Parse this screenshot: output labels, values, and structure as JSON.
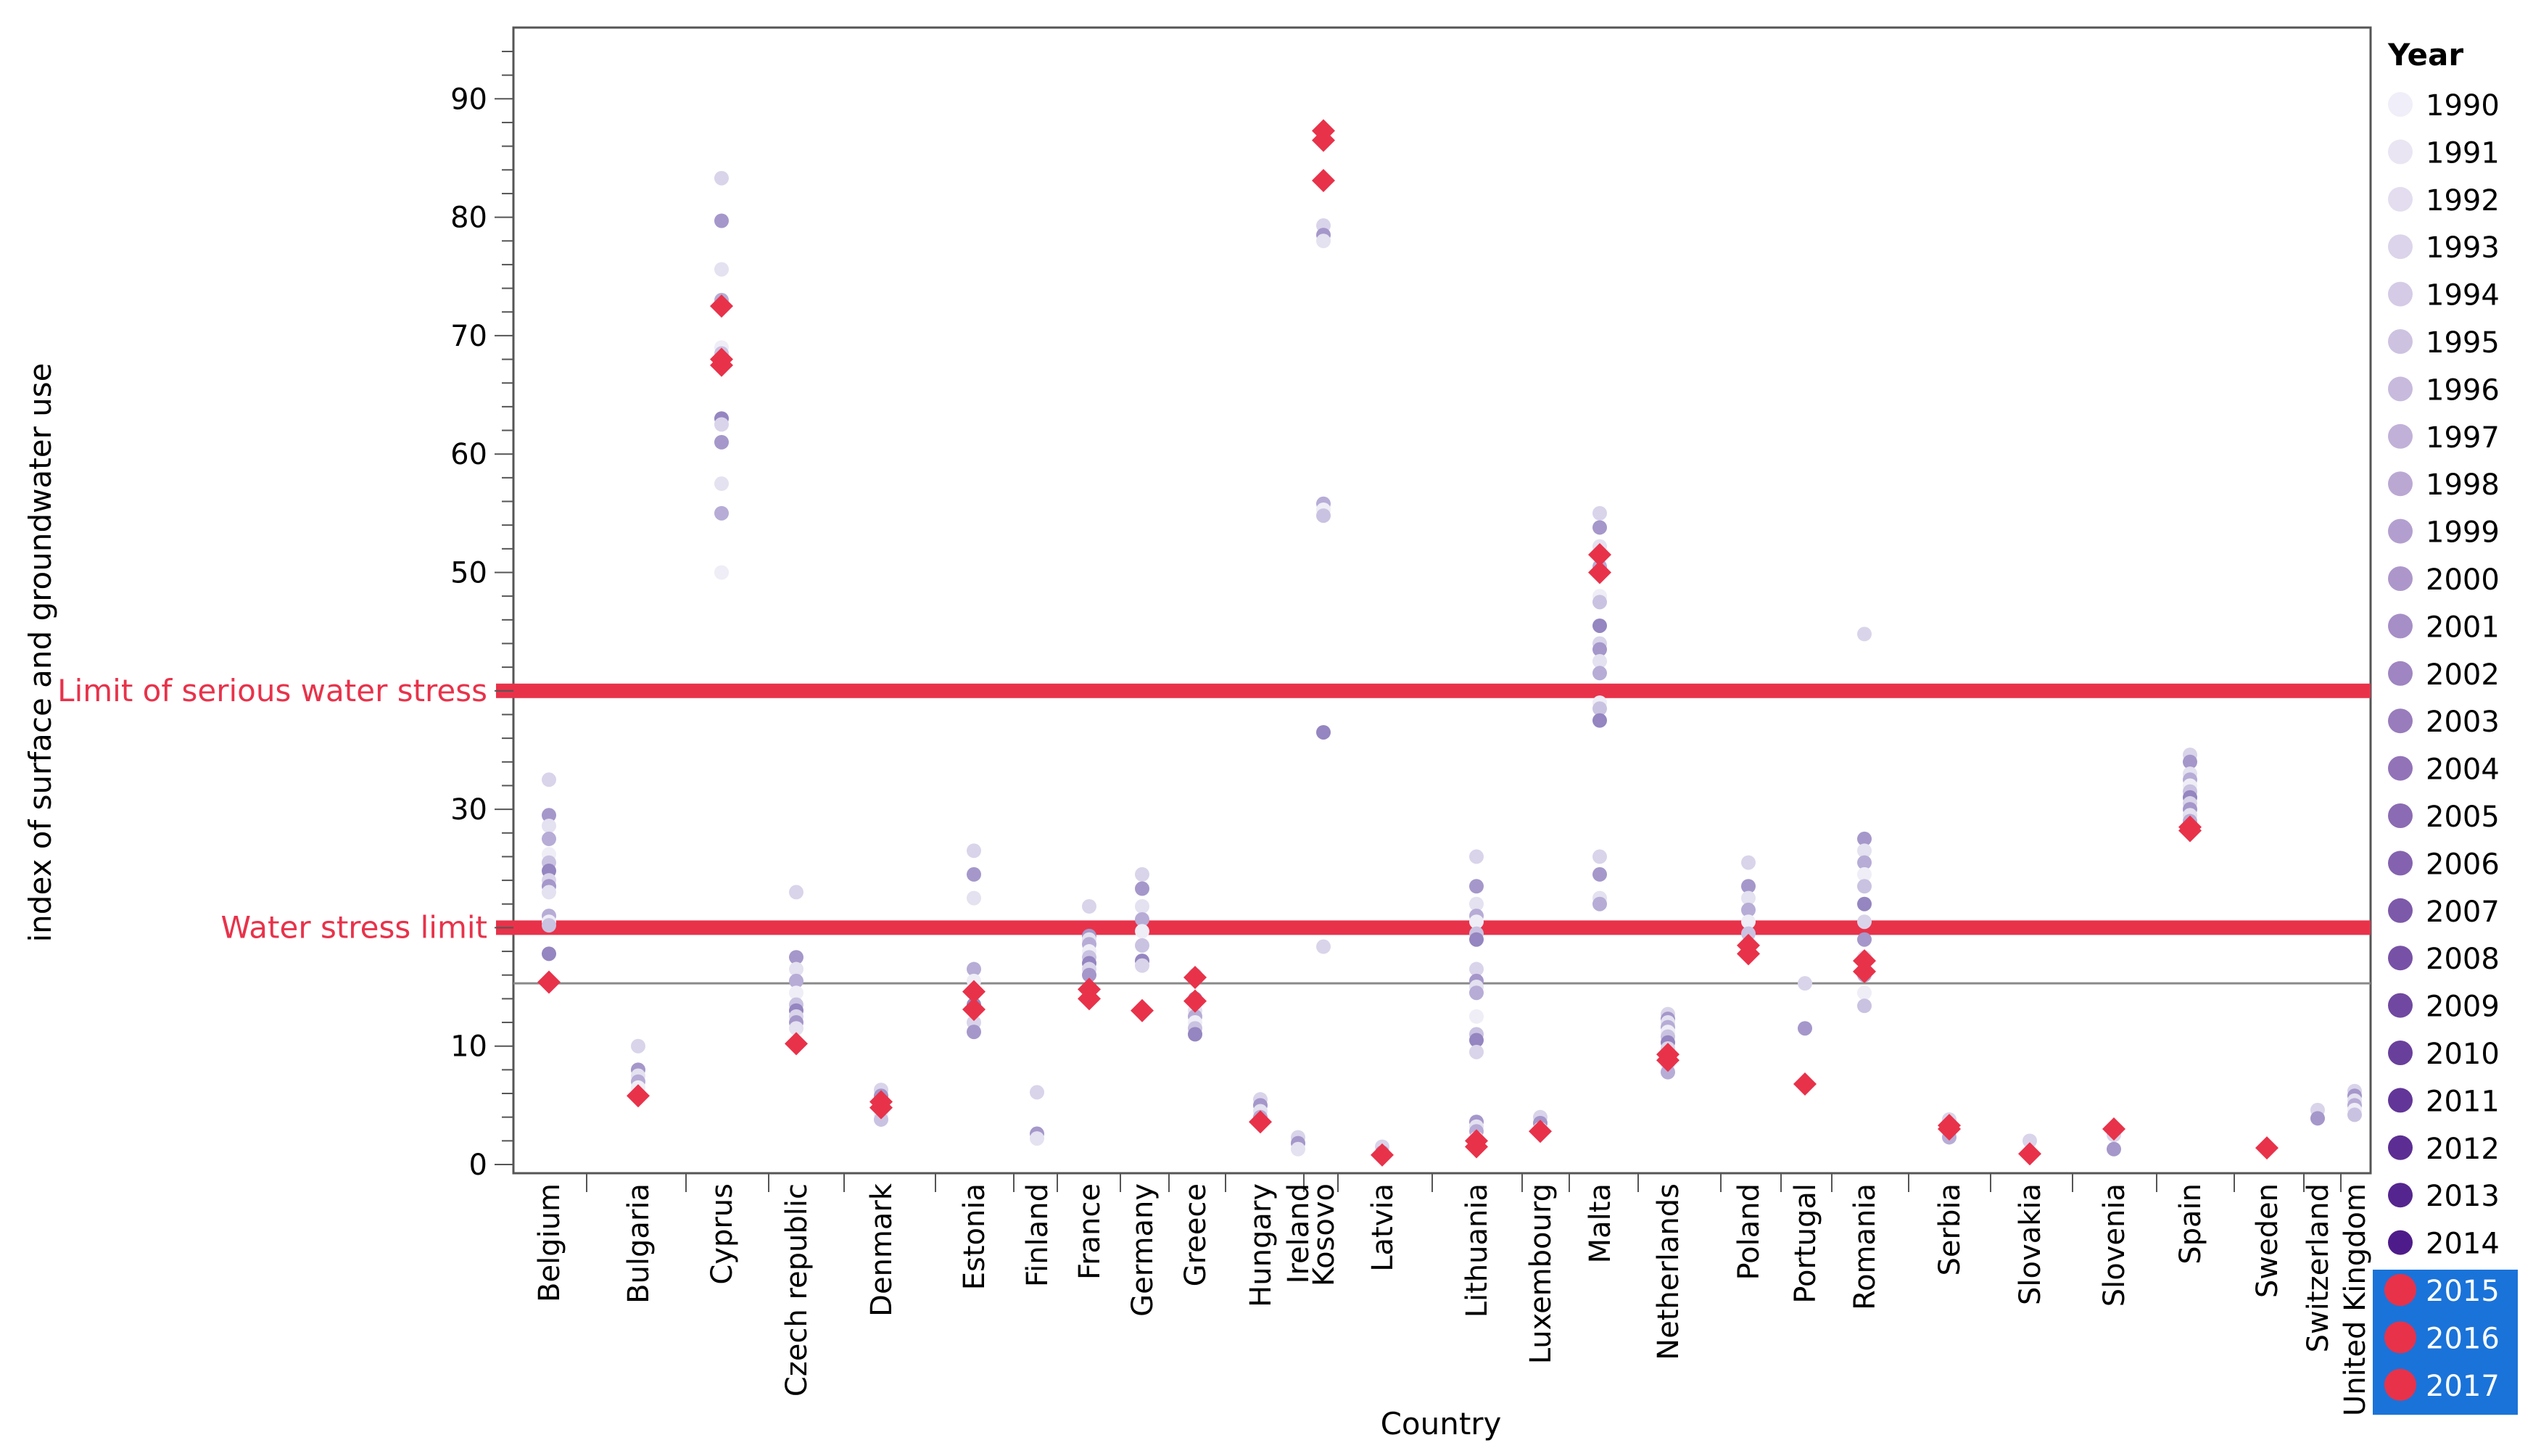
{
  "chart_data": {
    "type": "scatter",
    "title": "",
    "xlabel": "Country",
    "ylabel": "index of surface and groundwater use",
    "ylim": [
      0,
      96
    ],
    "yticks": [
      0,
      10,
      20,
      30,
      40,
      50,
      60,
      70,
      80,
      90
    ],
    "ytick_labels": [
      "0",
      "10",
      "",
      "30",
      "",
      "50",
      "60",
      "70",
      "80",
      "90"
    ],
    "categories": [
      "Belgium",
      "Bulgaria",
      "Cyprus",
      "Czech republic",
      "Denmark",
      "Estonia",
      "Finland",
      "France",
      "Germany",
      "Greece",
      "Hungary",
      "Ireland",
      "Kosovo",
      "Latvia",
      "Lithuania",
      "Luxembourg",
      "Malta",
      "Netherlands",
      "Poland",
      "Portugal",
      "Romania",
      "Serbia",
      "Slovakia",
      "Slovenia",
      "Spain",
      "Sweden",
      "Switzerland",
      "United Kingdom"
    ],
    "reference_lines": [
      {
        "label": "Limit of serious water stress",
        "value": 40,
        "color": "#e8324a"
      },
      {
        "label": "Water stress limit",
        "value": 20,
        "color": "#e8324a"
      },
      {
        "label": "",
        "value": 15.3,
        "color": "#8a8a8a"
      }
    ],
    "legend": {
      "title": "Year",
      "years": [
        "1990",
        "1991",
        "1992",
        "1993",
        "1994",
        "1995",
        "1996",
        "1997",
        "1998",
        "1999",
        "2000",
        "2001",
        "2002",
        "2003",
        "2004",
        "2005",
        "2006",
        "2007",
        "2008",
        "2009",
        "2010",
        "2011",
        "2012",
        "2013",
        "2014",
        "2015",
        "2016",
        "2017"
      ],
      "highlighted": [
        "2015",
        "2016",
        "2017"
      ],
      "highlight_bg": "#1a73d9",
      "highlight_color": "#e8324a"
    },
    "series": [
      {
        "name": "1990-2014",
        "marker": "circle",
        "values": {
          "Belgium": [
            32.5,
            29.5,
            28.6,
            27.5,
            26.2,
            25.5,
            24.8,
            24,
            23.5,
            23,
            21,
            20.5,
            20.2,
            17.8
          ],
          "Bulgaria": [
            10,
            8,
            7.5,
            7,
            6.5
          ],
          "Cyprus": [
            83.3,
            79.7,
            75.6,
            73,
            69,
            68.5,
            63,
            62.5,
            61,
            57.5,
            55,
            50
          ],
          "Czech republic": [
            23,
            17.5,
            16.5,
            15.5,
            14.5,
            13.5,
            13,
            12.5,
            12,
            11.5
          ],
          "Denmark": [
            6.3,
            5.8,
            5.2,
            4.7,
            4.2,
            3.8
          ],
          "Estonia": [
            26.5,
            24.5,
            22.5,
            16.5,
            15.5,
            14.5,
            13.5,
            12,
            11.2
          ],
          "Finland": [
            6.1,
            2.6,
            2.2
          ],
          "France": [
            21.8,
            19.3,
            19,
            18.6,
            18,
            17.5,
            17,
            16.5,
            16
          ],
          "Germany": [
            24.5,
            23.3,
            21.8,
            20.7,
            19.7,
            18.5,
            17.2,
            16.8
          ],
          "Greece": [
            16,
            14,
            13,
            12.5,
            12,
            11.5,
            11
          ],
          "Hungary": [
            5.5,
            5,
            4.5,
            4
          ],
          "Ireland": [
            2.3,
            1.8,
            1.3
          ],
          "Kosovo": [
            79.3,
            78.5,
            78,
            55.8,
            55.3,
            54.8,
            36.5,
            18.4
          ],
          "Latvia": [
            1.5,
            1
          ],
          "Lithuania": [
            26,
            23.5,
            22,
            21,
            20.5,
            19.5,
            19,
            16.5,
            15.5,
            15,
            14.5,
            12.5,
            11,
            10.5,
            9.5,
            3.6,
            3.2,
            2.8,
            2.2,
            1.5
          ],
          "Luxembourg": [
            4,
            3.5,
            3
          ],
          "Malta": [
            55,
            53.8,
            52.2,
            50.5,
            48,
            47.5,
            45.5,
            44,
            43.5,
            42.5,
            41.5,
            39,
            38.5,
            37.5,
            26,
            24.5,
            22.5,
            22
          ],
          "Netherlands": [
            12.7,
            12.3,
            12,
            11.6,
            11.2,
            10.8,
            10.3,
            9.8,
            9.2,
            8.5,
            7.8
          ],
          "Poland": [
            25.5,
            23.5,
            22.5,
            21.5,
            20.5,
            19.5
          ],
          "Portugal": [
            15.3,
            11.5
          ],
          "Romania": [
            44.8,
            27.5,
            26.5,
            25.5,
            24.5,
            23.5,
            22,
            20.5,
            19,
            17.5,
            16,
            14.5,
            13.4
          ],
          "Serbia": [
            3.8,
            3.3,
            2.8,
            2.3
          ],
          "Slovakia": [
            2,
            1
          ],
          "Slovenia": [
            2.5,
            1.3
          ],
          "Spain": [
            34.6,
            34,
            33,
            32.5,
            32,
            31.5,
            31,
            30.5,
            30,
            29.5,
            29
          ],
          "Sweden": [
            1.5
          ],
          "Switzerland": [
            4.6,
            3.9
          ],
          "United Kingdom": [
            6.2,
            5.8,
            5.4,
            5,
            4.6,
            4.2
          ]
        }
      },
      {
        "name": "2015-2017",
        "marker": "diamond",
        "values": {
          "Belgium": [
            15.4
          ],
          "Bulgaria": [
            5.8
          ],
          "Cyprus": [
            72.5,
            68,
            67.5
          ],
          "Czech republic": [
            10.2
          ],
          "Denmark": [
            5.3,
            4.8
          ],
          "Estonia": [
            14.6,
            13.1
          ],
          "France": [
            14.8,
            14
          ],
          "Germany": [
            13
          ],
          "Greece": [
            15.8,
            13.8
          ],
          "Hungary": [
            3.6
          ],
          "Kosovo": [
            87.3,
            86.5,
            83.1
          ],
          "Latvia": [
            0.8
          ],
          "Lithuania": [
            2,
            1.5
          ],
          "Luxembourg": [
            2.8
          ],
          "Malta": [
            51.5,
            50
          ],
          "Netherlands": [
            9.3,
            8.8
          ],
          "Poland": [
            18.5,
            17.8
          ],
          "Portugal": [
            6.8
          ],
          "Romania": [
            17.2,
            16.3
          ],
          "Serbia": [
            3.3,
            3
          ],
          "Slovakia": [
            0.9
          ],
          "Slovenia": [
            3
          ],
          "Spain": [
            28.5,
            28.2
          ],
          "Sweden": [
            1.4
          ]
        }
      }
    ]
  }
}
